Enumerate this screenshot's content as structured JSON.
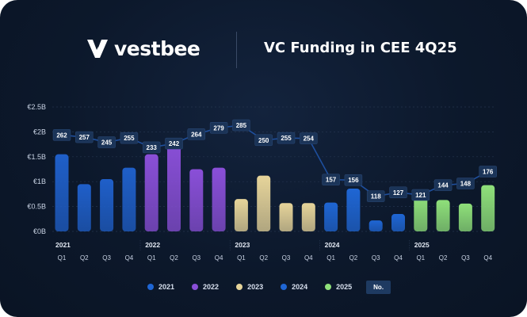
{
  "brand": {
    "name": "vestbee"
  },
  "title": "VC Funding in CEE 4Q25",
  "legend": {
    "items": [
      {
        "label": "2021",
        "color": "#1f66d4"
      },
      {
        "label": "2022",
        "color": "#8a4fd8"
      },
      {
        "label": "2023",
        "color": "#e6d49a"
      },
      {
        "label": "2024",
        "color": "#1f66d4"
      },
      {
        "label": "2025",
        "color": "#8fe07a"
      }
    ],
    "count_label": "No."
  },
  "chart_data": {
    "type": "bar",
    "title": "VC Funding in CEE 4Q25",
    "xlabel": "",
    "ylabel": "",
    "ylim": [
      0,
      2.5
    ],
    "y_ticks": [
      "€0B",
      "€0.5B",
      "€1B",
      "€1.5B",
      "€2B",
      "€2.5B"
    ],
    "year_labels": [
      "2021",
      "2022",
      "2023",
      "2024",
      "2025"
    ],
    "categories": [
      "Q1",
      "Q2",
      "Q3",
      "Q4",
      "Q1",
      "Q2",
      "Q3",
      "Q4",
      "Q1",
      "Q2",
      "Q3",
      "Q4",
      "Q1",
      "Q2",
      "Q3",
      "Q4",
      "Q1",
      "Q2",
      "Q3",
      "Q4"
    ],
    "series": [
      {
        "name": "Funding (€B)",
        "values": [
          1.55,
          0.95,
          1.05,
          1.28,
          1.55,
          1.83,
          1.25,
          1.28,
          0.65,
          1.12,
          0.57,
          0.57,
          0.58,
          0.86,
          0.22,
          0.35,
          0.7,
          0.63,
          0.56,
          0.93
        ],
        "colors": [
          "#1f5fc9",
          "#1f5fc9",
          "#1f5fc9",
          "#1f5fc9",
          "#8a4fd8",
          "#8a4fd8",
          "#8a4fd8",
          "#8a4fd8",
          "#e6d49a",
          "#e6d49a",
          "#e6d49a",
          "#e6d49a",
          "#1f66d4",
          "#1f66d4",
          "#1f66d4",
          "#1f66d4",
          "#8fe07a",
          "#8fe07a",
          "#8fe07a",
          "#8fe07a"
        ]
      },
      {
        "name": "No.",
        "values": [
          262,
          257,
          245,
          255,
          233,
          242,
          264,
          279,
          285,
          250,
          255,
          254,
          157,
          156,
          118,
          127,
          121,
          144,
          148,
          176
        ],
        "color": "#1e3a61"
      }
    ]
  }
}
